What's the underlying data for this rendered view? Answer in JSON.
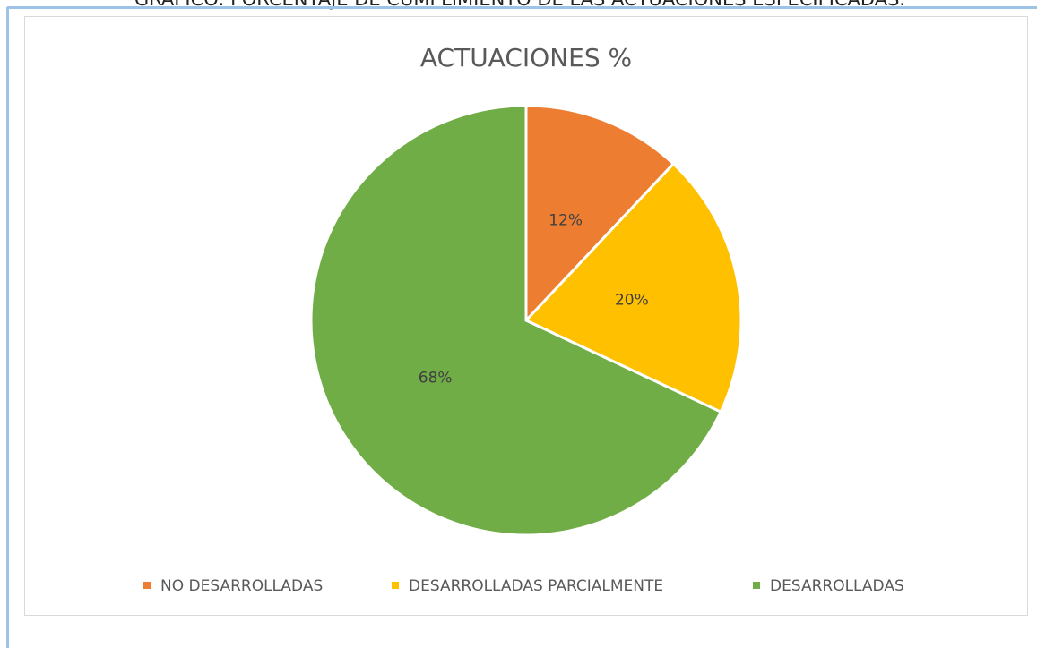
{
  "heading": "GRÁFICO: PORCENTAJE DE CUMPLIMIENTO DE LAS ACTUACIONES ESPECIFICADAS.",
  "chart_data": {
    "type": "pie",
    "title": "ACTUACIONES %",
    "categories": [
      "NO DESARROLLADAS",
      "DESARROLLADAS PARCIALMENTE",
      "DESARROLLADAS"
    ],
    "values": [
      12,
      20,
      68
    ],
    "value_labels": [
      "12%",
      "20%",
      "68%"
    ],
    "colors": [
      "#ed7d31",
      "#ffc000",
      "#70ad47"
    ],
    "legend": "bottom"
  }
}
